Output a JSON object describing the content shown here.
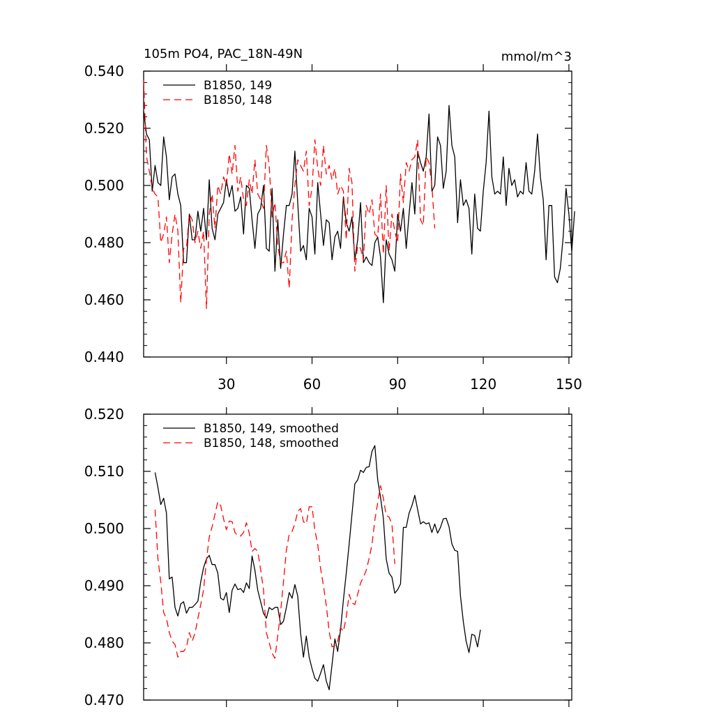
{
  "chart_data": [
    {
      "type": "line",
      "title_left": "105m PO4, PAC_18N-49N",
      "title_right": "mmol/m^3",
      "xlim": [
        1,
        151
      ],
      "ylim": [
        0.44,
        0.54
      ],
      "x_ticks": [
        30,
        60,
        90,
        120,
        150
      ],
      "x_tick_labels": [
        "30",
        "60",
        "90",
        "120",
        "150"
      ],
      "y_ticks": [
        0.44,
        0.46,
        0.48,
        0.5,
        0.52,
        0.54
      ],
      "y_tick_labels": [
        "0.440",
        "0.460",
        "0.480",
        "0.500",
        "0.520",
        "0.540"
      ],
      "legend_position": "top-left",
      "series": [
        {
          "name": "B1850, 149",
          "color": "#000000",
          "dash": "solid",
          "x_start": 1,
          "values": [
            0.526,
            0.518,
            0.516,
            0.498,
            0.507,
            0.501,
            0.5,
            0.517,
            0.51,
            0.495,
            0.503,
            0.504,
            0.497,
            0.493,
            0.473,
            0.473,
            0.49,
            0.481,
            0.481,
            0.491,
            0.484,
            0.492,
            0.481,
            0.502,
            0.485,
            0.481,
            0.49,
            0.492,
            0.494,
            0.502,
            0.496,
            0.5,
            0.491,
            0.492,
            0.496,
            0.483,
            0.5,
            0.499,
            0.488,
            0.478,
            0.49,
            0.492,
            0.5,
            0.478,
            0.477,
            0.499,
            0.47,
            0.488,
            0.471,
            0.483,
            0.493,
            0.493,
            0.497,
            0.512,
            0.494,
            0.477,
            0.479,
            0.474,
            0.492,
            0.489,
            0.476,
            0.501,
            0.49,
            0.479,
            0.488,
            0.487,
            0.474,
            0.482,
            0.484,
            0.478,
            0.496,
            0.487,
            0.484,
            0.489,
            0.474,
            0.481,
            0.494,
            0.473,
            0.475,
            0.473,
            0.472,
            0.48,
            0.482,
            0.475,
            0.459,
            0.481,
            0.476,
            0.474,
            0.47,
            0.49,
            0.484,
            0.492,
            0.478,
            0.49,
            0.501,
            0.49,
            0.512,
            0.508,
            0.505,
            0.51,
            0.525,
            0.498,
            0.5,
            0.517,
            0.514,
            0.499,
            0.505,
            0.528,
            0.514,
            0.51,
            0.487,
            0.502,
            0.493,
            0.495,
            0.492,
            0.476,
            0.497,
            0.485,
            0.484,
            0.498,
            0.508,
            0.526,
            0.503,
            0.497,
            0.498,
            0.497,
            0.51,
            0.493,
            0.506,
            0.5,
            0.502,
            0.496,
            0.498,
            0.497,
            0.508,
            0.498,
            0.497,
            0.505,
            0.518,
            0.503,
            0.495,
            0.474,
            0.493,
            0.493,
            0.468,
            0.466,
            0.471,
            0.482,
            0.499,
            0.49,
            0.477,
            0.491
          ]
        },
        {
          "name": "B1850, 148",
          "color": "#ff0000",
          "dash": "dashed",
          "x_start": 1,
          "values": [
            0.537,
            0.51,
            0.505,
            0.499,
            0.497,
            0.496,
            0.48,
            0.483,
            0.489,
            0.473,
            0.483,
            0.49,
            0.484,
            0.459,
            0.478,
            0.478,
            0.49,
            0.488,
            0.48,
            0.484,
            0.478,
            0.484,
            0.457,
            0.49,
            0.497,
            0.485,
            0.5,
            0.497,
            0.503,
            0.5,
            0.511,
            0.504,
            0.514,
            0.498,
            0.503,
            0.495,
            0.493,
            0.502,
            0.497,
            0.509,
            0.497,
            0.495,
            0.492,
            0.514,
            0.507,
            0.489,
            0.494,
            0.479,
            0.473,
            0.473,
            0.477,
            0.464,
            0.488,
            0.5,
            0.509,
            0.507,
            0.505,
            0.512,
            0.493,
            0.499,
            0.516,
            0.506,
            0.5,
            0.514,
            0.504,
            0.507,
            0.502,
            0.506,
            0.497,
            0.5,
            0.498,
            0.481,
            0.506,
            0.501,
            0.47,
            0.479,
            0.478,
            0.474,
            0.493,
            0.49,
            0.495,
            0.483,
            0.482,
            0.497,
            0.476,
            0.5,
            0.477,
            0.49,
            0.484,
            0.48,
            0.504,
            0.494,
            0.508,
            0.505,
            0.509,
            0.51,
            0.516,
            0.488,
            0.486,
            0.51,
            0.508,
            0.5,
            0.485
          ]
        }
      ]
    },
    {
      "type": "line",
      "xlim": [
        1,
        151
      ],
      "ylim": [
        0.47,
        0.52
      ],
      "x_ticks": [
        30,
        60,
        90,
        120,
        150
      ],
      "y_ticks": [
        0.47,
        0.48,
        0.49,
        0.5,
        0.51,
        0.52
      ],
      "y_tick_labels": [
        "0.470",
        "0.480",
        "0.490",
        "0.500",
        "0.510",
        "0.520"
      ],
      "legend_position": "top-left",
      "series": [
        {
          "name": "B1850, 149, smoothed",
          "color": "#000000",
          "dash": "solid",
          "x_start": 5,
          "values": [
            0.5098,
            0.5072,
            0.5042,
            0.5053,
            0.5027,
            0.4912,
            0.4915,
            0.4862,
            0.4847,
            0.4868,
            0.4872,
            0.4852,
            0.4862,
            0.4862,
            0.4867,
            0.4873,
            0.4907,
            0.4932,
            0.4947,
            0.4953,
            0.4937,
            0.4937,
            0.4922,
            0.4878,
            0.4875,
            0.4888,
            0.4853,
            0.4892,
            0.4903,
            0.4893,
            0.4895,
            0.4888,
            0.4905,
            0.4895,
            0.4952,
            0.4927,
            0.4892,
            0.4872,
            0.4852,
            0.4843,
            0.4862,
            0.4858,
            0.4862,
            0.4862,
            0.4832,
            0.4838,
            0.4862,
            0.4888,
            0.4878,
            0.4902,
            0.4882,
            0.4817,
            0.4775,
            0.4812,
            0.4775,
            0.4755,
            0.4738,
            0.4733,
            0.4747,
            0.4762,
            0.4733,
            0.4718,
            0.4762,
            0.4807,
            0.4785,
            0.4823,
            0.4875,
            0.4922,
            0.4972,
            0.5025,
            0.5078,
            0.5085,
            0.5102,
            0.5098,
            0.5107,
            0.5108,
            0.5135,
            0.5145,
            0.5085,
            0.5055,
            0.5018,
            0.4947,
            0.4922,
            0.4915,
            0.4887,
            0.4893,
            0.4903,
            0.5002,
            0.5002,
            0.5027,
            0.504,
            0.5058,
            0.5033,
            0.5008,
            0.5012,
            0.5008,
            0.501,
            0.4993,
            0.5008,
            0.4992,
            0.5002,
            0.5017,
            0.5018,
            0.5003,
            0.4973,
            0.4962,
            0.496,
            0.4882,
            0.4837,
            0.4803,
            0.4783,
            0.4815,
            0.4813,
            0.4793,
            0.4823
          ]
        },
        {
          "name": "B1850, 148, smoothed",
          "color": "#ff0000",
          "dash": "dashed",
          "x_start": 5,
          "values": [
            0.5033,
            0.4947,
            0.4907,
            0.4853,
            0.4843,
            0.4818,
            0.4803,
            0.4797,
            0.4775,
            0.4785,
            0.4785,
            0.4792,
            0.4818,
            0.4803,
            0.4817,
            0.4843,
            0.4867,
            0.4893,
            0.4945,
            0.4985,
            0.5003,
            0.5025,
            0.5047,
            0.504,
            0.5017,
            0.4998,
            0.5013,
            0.5012,
            0.4993,
            0.4987,
            0.4987,
            0.4993,
            0.501,
            0.4992,
            0.496,
            0.4965,
            0.496,
            0.4928,
            0.4893,
            0.4818,
            0.48,
            0.4782,
            0.4773,
            0.4813,
            0.4855,
            0.4908,
            0.4962,
            0.499,
            0.4995,
            0.5008,
            0.503,
            0.5035,
            0.5012,
            0.5008,
            0.5038,
            0.5038,
            0.4997,
            0.4972,
            0.493,
            0.49,
            0.4865,
            0.482,
            0.4793,
            0.4795,
            0.4803,
            0.4827,
            0.482,
            0.4845,
            0.4885,
            0.487,
            0.4867,
            0.4885,
            0.4905,
            0.4915,
            0.4927,
            0.4948,
            0.4972,
            0.5015,
            0.5045,
            0.5075,
            0.5053,
            0.5023,
            0.502,
            0.5008,
            0.4938
          ]
        }
      ]
    }
  ]
}
